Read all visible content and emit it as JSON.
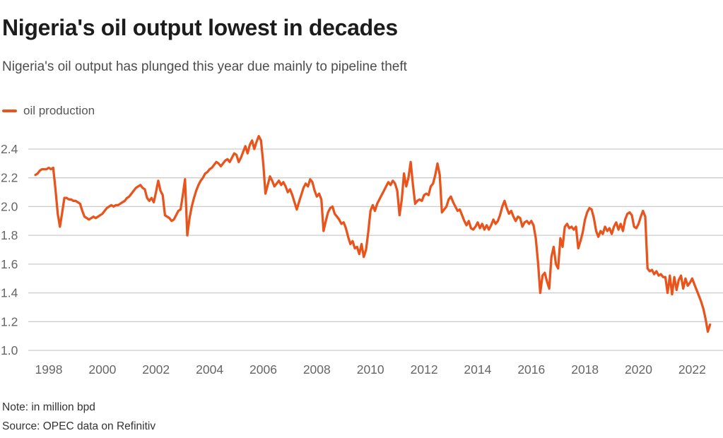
{
  "header": {
    "title": "Nigeria's oil output lowest in decades",
    "subtitle": "Nigeria's oil output has plunged this year due mainly to pipeline theft"
  },
  "legend": {
    "label": "oil production",
    "swatch_color": "#e8541c"
  },
  "footer": {
    "note": "Note: in million bpd",
    "source": "Source: OPEC data on Refinitiv"
  },
  "colors": {
    "accent": "#e8541c",
    "title_text": "#1c1c1c",
    "subtitle_text": "#4d4d4d",
    "axis_label": "#666666",
    "gridline": "#cccccc",
    "footer_text": "#333333"
  },
  "chart_data": {
    "type": "line",
    "title": "Nigeria's oil output lowest in decades",
    "subtitle": "Nigeria's oil output has plunged this year due mainly to pipeline theft",
    "unit": "million bpd",
    "xlabel": "",
    "ylabel": "",
    "grid": "horizontal",
    "legend_position": "top-left",
    "x_ticks": [
      1998,
      2000,
      2002,
      2004,
      2006,
      2008,
      2010,
      2012,
      2014,
      2016,
      2018,
      2020,
      2022
    ],
    "y_ticks": [
      1.0,
      1.2,
      1.4,
      1.6,
      1.8,
      2.0,
      2.2,
      2.4
    ],
    "xlim": [
      1997.235,
      2023.15
    ],
    "ylim": [
      1.0,
      2.53
    ],
    "series": [
      {
        "name": "oil production",
        "color": "#e8541c",
        "frequency": "monthly",
        "start_year": 1997,
        "start_month": 7,
        "end_year": 2022,
        "end_month": 9,
        "values": [
          2.22,
          2.23,
          2.25,
          2.26,
          2.26,
          2.26,
          2.27,
          2.26,
          2.27,
          2.12,
          1.95,
          1.86,
          1.96,
          2.06,
          2.06,
          2.05,
          2.05,
          2.04,
          2.04,
          2.03,
          2.02,
          1.97,
          1.93,
          1.92,
          1.91,
          1.92,
          1.93,
          1.92,
          1.93,
          1.94,
          1.95,
          1.97,
          1.99,
          2.0,
          2.01,
          2.0,
          2.01,
          2.01,
          2.02,
          2.03,
          2.04,
          2.06,
          2.07,
          2.09,
          2.11,
          2.13,
          2.14,
          2.15,
          2.13,
          2.12,
          2.06,
          2.04,
          2.06,
          2.03,
          2.1,
          2.18,
          2.11,
          2.08,
          1.94,
          1.93,
          1.92,
          1.9,
          1.91,
          1.94,
          1.97,
          1.98,
          2.08,
          2.19,
          1.8,
          1.92,
          2.0,
          2.06,
          2.11,
          2.15,
          2.18,
          2.2,
          2.23,
          2.24,
          2.26,
          2.27,
          2.29,
          2.31,
          2.3,
          2.28,
          2.3,
          2.32,
          2.33,
          2.31,
          2.34,
          2.37,
          2.36,
          2.31,
          2.34,
          2.38,
          2.42,
          2.37,
          2.43,
          2.46,
          2.4,
          2.45,
          2.49,
          2.46,
          2.3,
          2.09,
          2.15,
          2.21,
          2.18,
          2.14,
          2.16,
          2.18,
          2.15,
          2.17,
          2.14,
          2.1,
          2.12,
          2.08,
          2.03,
          1.98,
          2.03,
          2.08,
          2.13,
          2.16,
          2.14,
          2.19,
          2.17,
          2.11,
          2.07,
          2.09,
          2.05,
          1.83,
          1.9,
          1.96,
          1.99,
          2.0,
          1.95,
          1.93,
          1.91,
          1.88,
          1.89,
          1.85,
          1.79,
          1.74,
          1.76,
          1.71,
          1.72,
          1.67,
          1.74,
          1.65,
          1.7,
          1.82,
          1.97,
          2.01,
          1.97,
          2.02,
          2.05,
          2.08,
          2.11,
          2.14,
          2.17,
          2.15,
          2.18,
          2.16,
          2.11,
          1.94,
          2.05,
          2.23,
          2.14,
          2.2,
          2.31,
          2.15,
          2.02,
          2.04,
          2.05,
          2.04,
          2.08,
          2.09,
          2.08,
          2.14,
          2.16,
          2.22,
          2.3,
          2.22,
          1.96,
          1.98,
          2.0,
          2.05,
          2.07,
          2.03,
          2.0,
          1.97,
          1.98,
          1.94,
          1.9,
          1.87,
          1.9,
          1.85,
          1.84,
          1.86,
          1.89,
          1.85,
          1.88,
          1.84,
          1.87,
          1.84,
          1.87,
          1.91,
          1.88,
          1.9,
          1.94,
          2.0,
          2.04,
          1.99,
          1.95,
          1.97,
          1.93,
          1.9,
          1.93,
          1.92,
          1.86,
          1.89,
          1.9,
          1.88,
          1.9,
          1.87,
          1.78,
          1.61,
          1.4,
          1.52,
          1.54,
          1.48,
          1.43,
          1.65,
          1.72,
          1.6,
          1.57,
          1.78,
          1.72,
          1.86,
          1.88,
          1.85,
          1.86,
          1.84,
          1.86,
          1.71,
          1.76,
          1.82,
          1.91,
          1.96,
          1.99,
          1.98,
          1.92,
          1.83,
          1.79,
          1.83,
          1.81,
          1.86,
          1.83,
          1.85,
          1.81,
          1.86,
          1.89,
          1.84,
          1.88,
          1.83,
          1.91,
          1.95,
          1.96,
          1.94,
          1.86,
          1.85,
          1.88,
          1.93,
          1.97,
          1.93,
          1.57,
          1.55,
          1.56,
          1.53,
          1.55,
          1.52,
          1.53,
          1.51,
          1.51,
          1.4,
          1.52,
          1.39,
          1.51,
          1.42,
          1.49,
          1.52,
          1.43,
          1.5,
          1.45,
          1.47,
          1.5,
          1.46,
          1.42,
          1.38,
          1.34,
          1.29,
          1.22,
          1.13,
          1.18
        ]
      }
    ]
  }
}
